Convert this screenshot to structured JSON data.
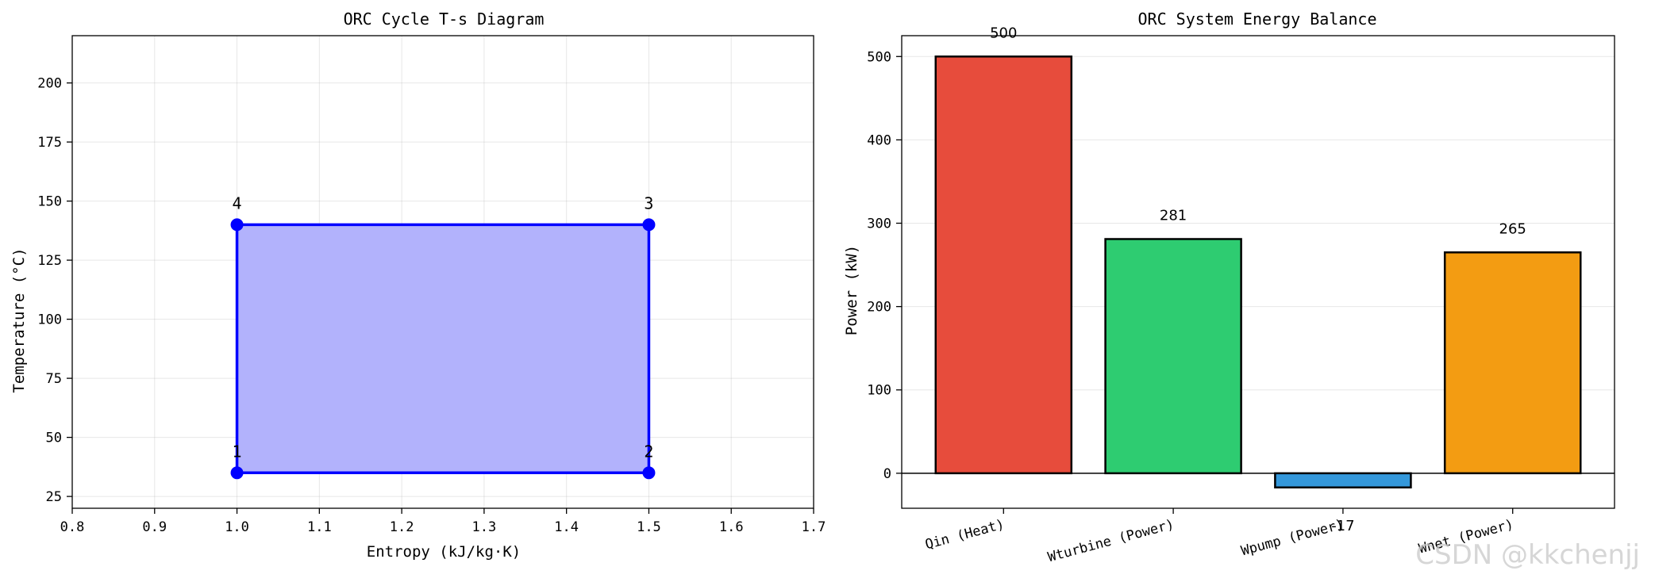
{
  "chart_data": [
    {
      "type": "area",
      "title": "ORC Cycle T-s Diagram",
      "xlabel": "Entropy (kJ/kg·K)",
      "ylabel": "Temperature (°C)",
      "xlim": [
        0.8,
        1.7
      ],
      "ylim": [
        20,
        220
      ],
      "xticks": [
        0.8,
        0.9,
        1.0,
        1.1,
        1.2,
        1.3,
        1.4,
        1.5,
        1.6,
        1.7
      ],
      "xtick_labels": [
        "0.8",
        "0.9",
        "1.0",
        "1.1",
        "1.2",
        "1.3",
        "1.4",
        "1.5",
        "1.6",
        "1.7"
      ],
      "yticks": [
        25,
        50,
        75,
        100,
        125,
        150,
        175,
        200
      ],
      "ytick_labels": [
        "25",
        "50",
        "75",
        "100",
        "125",
        "150",
        "175",
        "200"
      ],
      "grid": true,
      "points": [
        {
          "label": "1",
          "s": 1.0,
          "T": 35
        },
        {
          "label": "2",
          "s": 1.5,
          "T": 35
        },
        {
          "label": "3",
          "s": 1.5,
          "T": 140
        },
        {
          "label": "4",
          "s": 1.0,
          "T": 140
        }
      ],
      "line_color": "#0000ff",
      "fill_color": "#b2b2fc"
    },
    {
      "type": "bar",
      "title": "ORC System Energy Balance",
      "xlabel": "",
      "ylabel": "Power (kW)",
      "ylim": [
        -42,
        525
      ],
      "yticks": [
        0,
        100,
        200,
        300,
        400,
        500
      ],
      "ytick_labels": [
        "0",
        "100",
        "200",
        "300",
        "400",
        "500"
      ],
      "grid": true,
      "categories": [
        "Qin (Heat)",
        "Wturbine (Power)",
        "Wpump (Power)",
        "Wnet (Power)"
      ],
      "values": [
        500,
        281,
        -17,
        265
      ],
      "value_labels": [
        "500",
        "281",
        "-17",
        "265"
      ],
      "colors": [
        "#e74c3c",
        "#2ecc71",
        "#3498db",
        "#f39c12"
      ]
    }
  ],
  "watermark": "CSDN @kkchenjj"
}
